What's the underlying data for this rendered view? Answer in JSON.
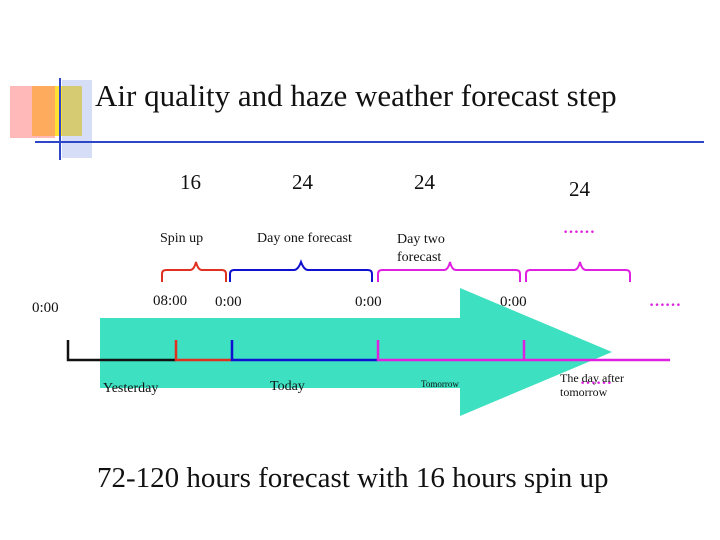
{
  "title": "Air quality and haze weather forecast step",
  "hours": [
    "16",
    "24",
    "24",
    "24"
  ],
  "phases": {
    "spin_up": "Spin up",
    "day_one": "Day one forecast",
    "day_two": "Day two forecast"
  },
  "ellipsis": "……",
  "times": {
    "t0": "0:00",
    "t1": "08:00",
    "t2": "0:00",
    "t3": "0:00",
    "t4": "0:00"
  },
  "days": {
    "yesterday": "Yesterday",
    "today": "Today",
    "tomorrow": "Tomorrow",
    "day_after": "The day after tomorrow"
  },
  "summary": "72-120 hours forecast with 16 hours spin up",
  "colors": {
    "arrow": "#3de0c0",
    "deco_yellow": "#ffe033",
    "deco_red": "#ff5a5a",
    "deco_blue": "#2e46c8",
    "spin_up": "#e03020",
    "day_one": "#1010d0",
    "day_two": "#e020e0",
    "timeline": "#111111"
  }
}
